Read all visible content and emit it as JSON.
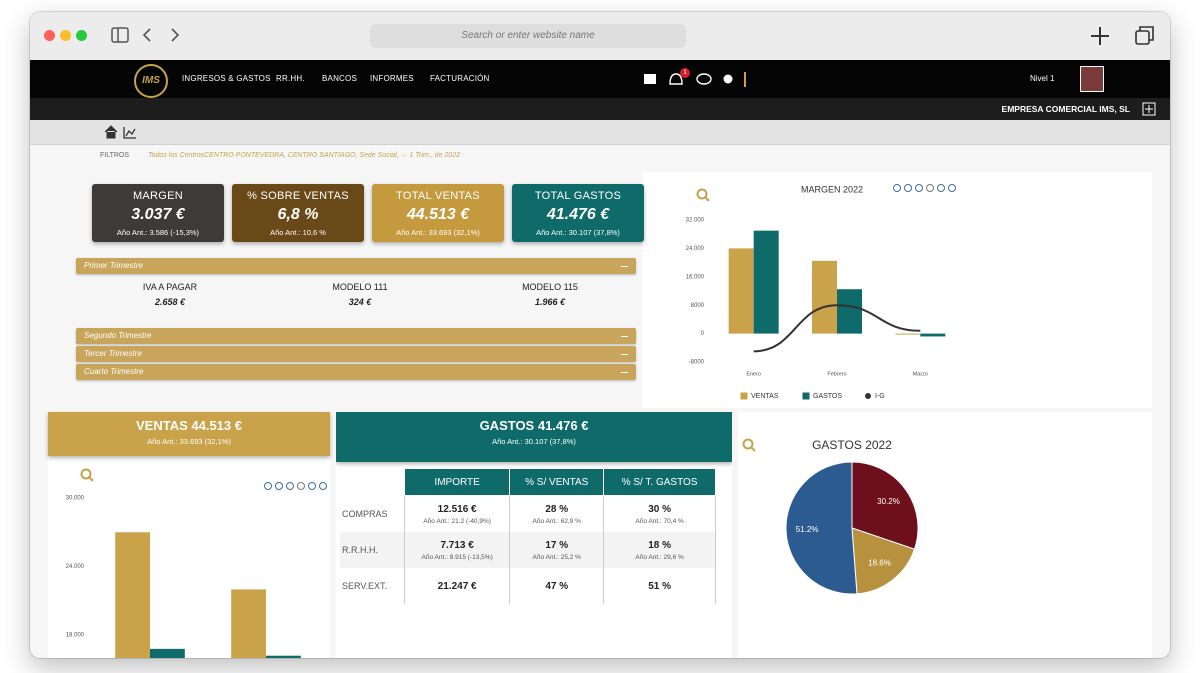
{
  "browser": {
    "search_placeholder": "Search or enter website name"
  },
  "nav": {
    "logo": "IMS",
    "items": [
      "INGRESOS & GASTOS",
      "RR.HH.",
      "BANCOS",
      "INFORMES",
      "FACTURACIÓN"
    ],
    "badge": "1",
    "level": "Nivel 1",
    "company": "EMPRESA COMERCIAL IMS, SL"
  },
  "filters": {
    "label": "FILTROS",
    "text": "Todos los CentrosCENTRO PONTEVEDRA, CENTRO SANTIAGO, Sede Social, → 1 Trim., de 2022"
  },
  "kpis": [
    {
      "title": "MARGEN",
      "value": "3.037 €",
      "previous": "Año Ant.: 3.586 (-15,3%)"
    },
    {
      "title": "% SOBRE VENTAS",
      "value": "6,8 %",
      "previous": "Año Ant.: 10,6 %"
    },
    {
      "title": "TOTAL VENTAS",
      "value": "44.513 €",
      "previous": "Año Ant.: 33.693 (32,1%)"
    },
    {
      "title": "TOTAL GASTOS",
      "value": "41.476 €",
      "previous": "Año Ant.: 30.107 (37,8%)"
    }
  ],
  "quarters": {
    "first": {
      "title": "Primer Trimestre",
      "items": [
        {
          "label": "IVA A PAGAR",
          "value": "2.658 €"
        },
        {
          "label": "MODELO 111",
          "value": "324 €"
        },
        {
          "label": "MODELO 115",
          "value": "1.966 €"
        }
      ]
    },
    "others": [
      "Segundo Trimestre",
      "Tercer Trimestre",
      "Cuarto Trimestre"
    ]
  },
  "ventas_panel": {
    "title": "VENTAS 44.513 €",
    "previous": "Año Ant.: 33.693 (32,1%)"
  },
  "gastos_panel": {
    "title": "GASTOS 41.476 €",
    "previous": "Año Ant.: 30.107 (37,8%)",
    "table": {
      "headers": [
        "IMPORTE",
        "% S/ VENTAS",
        "% S/ T. GASTOS"
      ],
      "rows": [
        {
          "label": "COMPRAS",
          "cells": [
            {
              "value": "12.516 €",
              "previous": "Año Ant.: 21.2 (-40,9%)"
            },
            {
              "value": "28 %",
              "previous": "Año Ant.: 62,9 %"
            },
            {
              "value": "30 %",
              "previous": "Año Ant.: 70,4 %"
            }
          ]
        },
        {
          "label": "R.R.H.H.",
          "cells": [
            {
              "value": "7.713 €",
              "previous": "Año Ant.: 8.915 (-13,5%)"
            },
            {
              "value": "17 %",
              "previous": "Año Ant.: 25,2 %"
            },
            {
              "value": "18 %",
              "previous": "Año Ant.: 29,6 %"
            }
          ]
        },
        {
          "label": "SERV.EXT.",
          "cells": [
            {
              "value": "21.247 €"
            },
            {
              "value": "47 %"
            },
            {
              "value": "51 %"
            }
          ]
        }
      ]
    }
  },
  "chart_data": [
    {
      "type": "bar",
      "title": "MARGEN 2022",
      "categories": [
        "Enero",
        "Febrero",
        "Marzo"
      ],
      "series": [
        {
          "name": "VENTAS",
          "color": "#c9a24a",
          "values": [
            24000,
            20500,
            0
          ]
        },
        {
          "name": "GASTOS",
          "color": "#0f6a6a",
          "values": [
            29000,
            12500,
            -800
          ]
        },
        {
          "name": "I-G",
          "type": "line",
          "color": "#333333",
          "values": [
            -5000,
            8000,
            800
          ]
        }
      ],
      "ylim": [
        -8000,
        32000
      ],
      "yticks": [
        -8000,
        0,
        8000,
        {
          "value": 16000,
          "label": "16.000"
        },
        {
          "value": 24000,
          "label": "24.000"
        },
        {
          "value": 32000,
          "label": "32.000"
        }
      ],
      "grid": false,
      "legend": "bottom"
    },
    {
      "type": "bar",
      "categories": [
        null,
        null
      ],
      "series": [
        {
          "name": "VENTAS",
          "color": "#c9a24a",
          "values": [
            27000,
            22000
          ]
        },
        {
          "name": "GASTOS",
          "color": "#0f6a6a",
          "values": [
            16800,
            16200
          ]
        }
      ],
      "ylim": [
        16000,
        30000
      ],
      "yticks": [
        {
          "value": 18000,
          "label": "18.000"
        },
        {
          "value": 24000,
          "label": "24.000"
        },
        {
          "value": 30000,
          "label": "30.000"
        }
      ],
      "grid": false
    },
    {
      "type": "pie",
      "title": "GASTOS 2022",
      "values": [
        30.2,
        18.6,
        51.2
      ],
      "value_labels": [
        "30.2%",
        "18.6%",
        "51.2%"
      ],
      "colors": [
        "#6e0f1c",
        "#b8913f",
        "#2c5b92"
      ]
    }
  ]
}
